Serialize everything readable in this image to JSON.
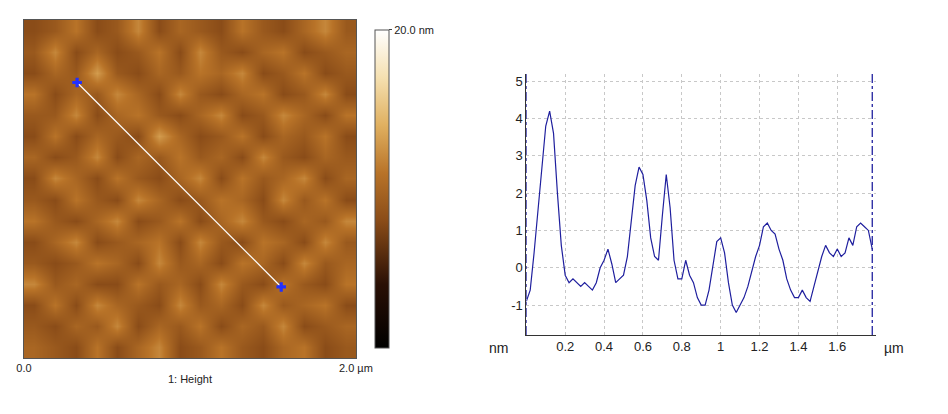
{
  "chart_data": [
    {
      "type": "heatmap",
      "xlabel": "1: Height",
      "x": [
        0.0625,
        0.1875,
        0.3125,
        0.4375,
        0.5625,
        0.6875,
        0.8125,
        0.9375,
        1.0625,
        1.1875,
        1.3125,
        1.4375,
        1.5625,
        1.6875,
        1.8125,
        1.9375
      ],
      "y": [
        1.9375,
        1.8125,
        1.6875,
        1.5625,
        1.4375,
        1.3125,
        1.1875,
        1.0625,
        0.9375,
        0.8125,
        0.6875,
        0.5625,
        0.4375,
        0.3125,
        0.1875,
        0.0625
      ],
      "z": [
        [
          8,
          9,
          11,
          8,
          9,
          12,
          8,
          10,
          9,
          8,
          11,
          9,
          8,
          10,
          12,
          9
        ],
        [
          9,
          12,
          8,
          10,
          8,
          9,
          11,
          8,
          12,
          9,
          8,
          10,
          11,
          8,
          9,
          10
        ],
        [
          8,
          10,
          9,
          13,
          9,
          8,
          10,
          9,
          11,
          10,
          12,
          8,
          9,
          11,
          8,
          9
        ],
        [
          11,
          8,
          10,
          9,
          12,
          10,
          8,
          12,
          9,
          8,
          10,
          11,
          8,
          9,
          12,
          8
        ],
        [
          9,
          9,
          12,
          8,
          10,
          11,
          9,
          8,
          10,
          12,
          8,
          9,
          12,
          10,
          8,
          11
        ],
        [
          8,
          11,
          8,
          10,
          9,
          8,
          13,
          10,
          8,
          9,
          11,
          8,
          10,
          9,
          11,
          8
        ],
        [
          10,
          8,
          9,
          12,
          8,
          10,
          9,
          11,
          9,
          10,
          8,
          12,
          9,
          8,
          10,
          9
        ],
        [
          8,
          12,
          10,
          8,
          11,
          9,
          8,
          10,
          12,
          8,
          11,
          9,
          10,
          12,
          8,
          10
        ],
        [
          9,
          8,
          11,
          9,
          8,
          12,
          10,
          8,
          9,
          11,
          10,
          8,
          12,
          9,
          11,
          8
        ],
        [
          11,
          9,
          8,
          10,
          12,
          8,
          9,
          11,
          8,
          10,
          12,
          9,
          8,
          10,
          9,
          12
        ],
        [
          8,
          10,
          12,
          8,
          9,
          10,
          11,
          8,
          12,
          9,
          8,
          11,
          10,
          8,
          12,
          9
        ],
        [
          9,
          8,
          9,
          11,
          10,
          8,
          12,
          9,
          10,
          8,
          11,
          10,
          8,
          12,
          9,
          10
        ],
        [
          12,
          9,
          10,
          8,
          8,
          11,
          9,
          10,
          8,
          12,
          9,
          8,
          11,
          9,
          8,
          11
        ],
        [
          8,
          11,
          8,
          12,
          10,
          9,
          8,
          12,
          9,
          10,
          8,
          12,
          9,
          10,
          11,
          8
        ],
        [
          9,
          8,
          10,
          9,
          12,
          8,
          10,
          9,
          11,
          8,
          10,
          9,
          12,
          8,
          9,
          10
        ],
        [
          10,
          9,
          8,
          11,
          8,
          10,
          12,
          8,
          9,
          11,
          9,
          8,
          10,
          11,
          8,
          9
        ]
      ],
      "xlim": [
        0,
        2
      ],
      "ylim": [
        0,
        2
      ],
      "xticks": [
        {
          "value": 0,
          "label": "0.0"
        },
        {
          "value": 2,
          "label": "2.0 µm"
        }
      ],
      "tick_labels": "x",
      "colorbar_range": [
        0,
        20
      ],
      "colorbar_ticks": [
        {
          "value": 20,
          "label": "20.0 nm"
        }
      ],
      "profile_line": {
        "x": [
          0.32,
          1.55
        ],
        "y": [
          1.63,
          0.42
        ],
        "color": "#ffffff",
        "marker": "cross"
      }
    },
    {
      "type": "line",
      "xlabel": "µm",
      "ylabel": "nm",
      "x": [
        0.0,
        0.02,
        0.04,
        0.06,
        0.08,
        0.1,
        0.12,
        0.14,
        0.16,
        0.18,
        0.2,
        0.22,
        0.24,
        0.26,
        0.28,
        0.3,
        0.32,
        0.34,
        0.36,
        0.38,
        0.4,
        0.42,
        0.44,
        0.46,
        0.48,
        0.5,
        0.52,
        0.54,
        0.56,
        0.58,
        0.6,
        0.62,
        0.64,
        0.66,
        0.68,
        0.7,
        0.72,
        0.74,
        0.76,
        0.78,
        0.8,
        0.82,
        0.84,
        0.86,
        0.88,
        0.9,
        0.92,
        0.94,
        0.96,
        0.98,
        1.0,
        1.02,
        1.04,
        1.06,
        1.08,
        1.1,
        1.12,
        1.14,
        1.16,
        1.18,
        1.2,
        1.22,
        1.24,
        1.26,
        1.28,
        1.3,
        1.32,
        1.34,
        1.36,
        1.38,
        1.4,
        1.42,
        1.44,
        1.46,
        1.48,
        1.5,
        1.52,
        1.54,
        1.56,
        1.58,
        1.6,
        1.62,
        1.64,
        1.66,
        1.68,
        1.7,
        1.72,
        1.74,
        1.76,
        1.78
      ],
      "values": [
        -0.9,
        -0.6,
        0.4,
        1.6,
        2.8,
        3.8,
        4.2,
        3.6,
        2.0,
        0.6,
        -0.2,
        -0.4,
        -0.3,
        -0.4,
        -0.5,
        -0.4,
        -0.5,
        -0.6,
        -0.4,
        0.0,
        0.2,
        0.5,
        0.1,
        -0.4,
        -0.3,
        -0.2,
        0.3,
        1.2,
        2.2,
        2.7,
        2.5,
        1.8,
        0.8,
        0.3,
        0.2,
        1.4,
        2.5,
        1.6,
        0.2,
        -0.3,
        -0.3,
        0.2,
        -0.2,
        -0.4,
        -0.8,
        -1.0,
        -1.0,
        -0.6,
        0.1,
        0.7,
        0.8,
        0.4,
        -0.4,
        -1.0,
        -1.2,
        -1.0,
        -0.8,
        -0.5,
        -0.1,
        0.3,
        0.6,
        1.1,
        1.2,
        1.0,
        0.9,
        0.5,
        0.2,
        -0.3,
        -0.6,
        -0.8,
        -0.8,
        -0.6,
        -0.8,
        -0.9,
        -0.5,
        -0.1,
        0.3,
        0.6,
        0.4,
        0.3,
        0.5,
        0.3,
        0.4,
        0.8,
        0.6,
        1.1,
        1.2,
        1.1,
        1.0,
        0.5
      ],
      "color": "#1f1f9e",
      "xlim": [
        0,
        1.8
      ],
      "ylim": [
        -1.8,
        5.2
      ],
      "xticks": [
        0.2,
        0.4,
        0.6,
        0.8,
        1,
        1.2,
        1.4,
        1.6
      ],
      "yticks": [
        -1,
        0,
        1,
        2,
        3,
        4,
        5
      ],
      "grid": true,
      "cursor_x": [
        0,
        1.78
      ]
    }
  ]
}
